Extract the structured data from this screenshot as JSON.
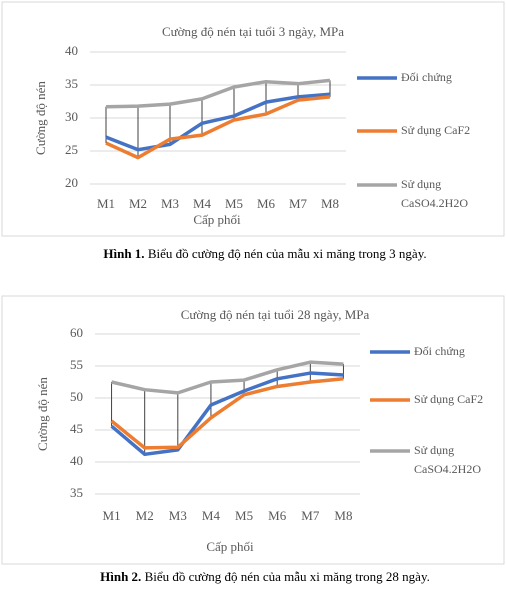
{
  "chart_data": [
    {
      "type": "line",
      "title": "Cường độ nén tại tuổi 3 ngày, MPa",
      "x_label": "Cấp phối",
      "y_label": "Cường độ nén",
      "categories": [
        "M1",
        "M2",
        "M3",
        "M4",
        "M5",
        "M6",
        "M7",
        "M8"
      ],
      "ylim": [
        20,
        40
      ],
      "yticks": [
        20,
        25,
        30,
        35,
        40
      ],
      "grid": true,
      "drop_lines": true,
      "legend": "right",
      "series": [
        {
          "name": "Đối chứng",
          "color": "#4472c4",
          "values": [
            27.1,
            25.2,
            26.0,
            29.2,
            30.3,
            32.4,
            33.2,
            33.6
          ]
        },
        {
          "name": "Sử dụng CaF2",
          "color": "#ed7d31",
          "values": [
            26.2,
            24.0,
            26.8,
            27.4,
            29.7,
            30.6,
            32.7,
            33.2
          ]
        },
        {
          "name": "Sử dụng CaSO4.2H2O",
          "color": "#a5a5a5",
          "values": [
            31.7,
            31.8,
            32.1,
            32.9,
            34.7,
            35.5,
            35.2,
            35.7
          ]
        }
      ],
      "caption_label": "Hình 1.",
      "caption": "Biểu đồ cường độ nén của mẫu xi măng trong 3 ngày."
    },
    {
      "type": "line",
      "title": "Cường độ nén tại tuổi 28 ngày, MPa",
      "x_label": "Cấp phối",
      "y_label": "Cường độ nén",
      "categories": [
        "M1",
        "M2",
        "M3",
        "M4",
        "M5",
        "M6",
        "M7",
        "M8"
      ],
      "ylim": [
        35,
        60
      ],
      "yticks": [
        35,
        40,
        45,
        50,
        55,
        60
      ],
      "grid": true,
      "drop_lines": true,
      "legend": "right",
      "series": [
        {
          "name": "Đối chứng",
          "color": "#4472c4",
          "values": [
            45.6,
            41.2,
            41.9,
            48.9,
            51.1,
            53.0,
            53.9,
            53.6
          ]
        },
        {
          "name": "Sử dụng CaF2",
          "color": "#ed7d31",
          "values": [
            46.4,
            42.2,
            42.3,
            46.9,
            50.5,
            51.8,
            52.5,
            53.0
          ]
        },
        {
          "name": "Sử dụng CaSO4.2H2O",
          "color": "#a5a5a5",
          "values": [
            52.5,
            51.3,
            50.8,
            52.5,
            52.8,
            54.4,
            55.6,
            55.3
          ]
        }
      ],
      "caption_label": "Hình 2.",
      "caption": "Biểu đồ cường độ nén của mẫu xi măng trong 28 ngày."
    }
  ]
}
